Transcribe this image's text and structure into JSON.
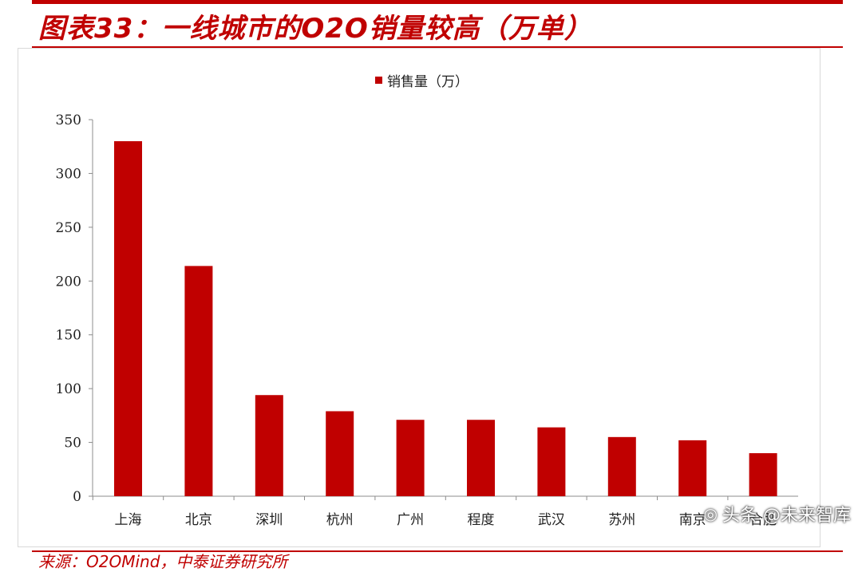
{
  "header": {
    "title": "图表33：一线城市的O2O销量较高（万单）"
  },
  "footer": {
    "source": "来源：O2OMind，中泰证券研究所"
  },
  "watermark": {
    "text": "头条 @未来智库",
    "icon": "wechat-icon"
  },
  "colors": {
    "accent": "#c00000",
    "bar": "#c00000"
  },
  "chart_data": {
    "type": "bar",
    "categories": [
      "上海",
      "北京",
      "深圳",
      "杭州",
      "广州",
      "程度",
      "武汉",
      "苏州",
      "南京",
      "合肥"
    ],
    "series": [
      {
        "name": "销售量（万）",
        "values": [
          330,
          214,
          94,
          79,
          71,
          71,
          64,
          55,
          52,
          40
        ]
      }
    ],
    "yticks": [
      "0",
      "50",
      "100",
      "150",
      "200",
      "250",
      "300",
      "350"
    ],
    "ylim": [
      0,
      350
    ],
    "legend": "top-center",
    "grid": false
  }
}
